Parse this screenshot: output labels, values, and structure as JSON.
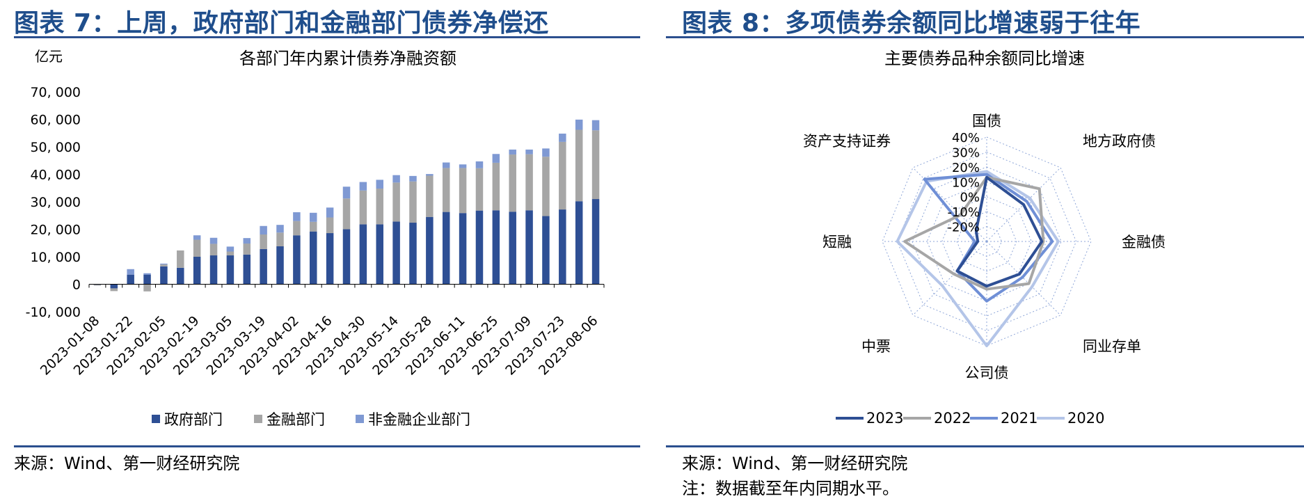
{
  "left": {
    "figure_title": "图表 7：上周，政府部门和金融部门债券净偿还",
    "source": "来源：Wind、第一财经研究院"
  },
  "right": {
    "figure_title": "图表 8：多项债券余额同比增速弱于往年",
    "source": "来源：Wind、第一财经研究院",
    "note": "注：数据截至年内同期水平。"
  },
  "colors": {
    "title": "#1f4e8c",
    "rule": "#2b4f8e",
    "gov": "#2e4f94",
    "fin": "#a6a6a6",
    "nonfin": "#7f99d3",
    "s2023": "#2e4f94",
    "s2022": "#a6a6a6",
    "s2021": "#6f8fd6",
    "s2020": "#b4c5e8"
  },
  "chart_data": [
    {
      "type": "bar",
      "stacked": true,
      "title": "各部门年内累计债券净融资额",
      "ylabel": "亿元",
      "ylim": [
        -10000,
        70000
      ],
      "yticks": [
        -10000,
        0,
        10000,
        20000,
        30000,
        40000,
        50000,
        60000,
        70000
      ],
      "ytick_labels": [
        "-10, 000",
        "0",
        "10, 000",
        "20, 000",
        "30, 000",
        "40, 000",
        "50, 000",
        "60, 000",
        "70, 000"
      ],
      "categories": [
        "2023-01-08",
        "2023-01-15",
        "2023-01-22",
        "2023-01-29",
        "2023-02-05",
        "2023-02-12",
        "2023-02-19",
        "2023-02-26",
        "2023-03-05",
        "2023-03-12",
        "2023-03-19",
        "2023-03-26",
        "2023-04-02",
        "2023-04-09",
        "2023-04-16",
        "2023-04-23",
        "2023-04-30",
        "2023-05-07",
        "2023-05-14",
        "2023-05-21",
        "2023-05-28",
        "2023-06-04",
        "2023-06-11",
        "2023-06-18",
        "2023-06-25",
        "2023-07-02",
        "2023-07-09",
        "2023-07-16",
        "2023-07-23",
        "2023-07-30",
        "2023-08-06"
      ],
      "xtick_labels": [
        "2023-01-08",
        "2023-01-22",
        "2023-02-05",
        "2023-02-19",
        "2023-03-05",
        "2023-03-19",
        "2023-04-02",
        "2023-04-16",
        "2023-04-30",
        "2023-05-14",
        "2023-05-28",
        "2023-06-11",
        "2023-06-25",
        "2023-07-09",
        "2023-07-23",
        "2023-08-06"
      ],
      "series": [
        {
          "name": "政府部门",
          "values": [
            -200,
            -1500,
            3500,
            3500,
            6500,
            6000,
            10000,
            10500,
            10500,
            10800,
            12800,
            13800,
            17800,
            19200,
            18600,
            20000,
            21800,
            21800,
            22800,
            22400,
            24500,
            26300,
            25900,
            26800,
            26900,
            26400,
            26900,
            24800,
            27200,
            30200,
            31000
          ]
        },
        {
          "name": "金融部门",
          "values": [
            -300,
            -1000,
            0,
            -2600,
            700,
            6300,
            6200,
            4200,
            1400,
            4000,
            5300,
            5000,
            5200,
            3500,
            5700,
            11200,
            12300,
            13000,
            14200,
            15000,
            15000,
            16000,
            16400,
            15400,
            17300,
            20800,
            20400,
            21600,
            24600,
            26000,
            25000
          ]
        },
        {
          "name": "非金融企业部门",
          "values": [
            0,
            0,
            2000,
            500,
            300,
            0,
            1600,
            2200,
            1800,
            2000,
            3100,
            2800,
            3200,
            3300,
            3600,
            4300,
            3100,
            3200,
            2700,
            2000,
            600,
            2000,
            1300,
            2500,
            3200,
            1800,
            1700,
            3000,
            3000,
            3700,
            3700
          ]
        }
      ],
      "legend": "bottom"
    },
    {
      "type": "radar",
      "title": "主要债券品种余额同比增速",
      "categories": [
        "国债",
        "地方政府债",
        "金融债",
        "同业存单",
        "公司债",
        "中票",
        "短融",
        "资产支持证券"
      ],
      "rlim": [
        -30,
        40
      ],
      "rticks": [
        -20,
        -10,
        0,
        10,
        20,
        30,
        40
      ],
      "rtick_labels": [
        "-20%",
        "-10%",
        "0%",
        "10%",
        "20%",
        "30%",
        "40%"
      ],
      "series": [
        {
          "name": "2023",
          "values": [
            13,
            5,
            7,
            1,
            0,
            -2,
            -24,
            -20
          ]
        },
        {
          "name": "2022",
          "values": [
            13,
            20,
            8,
            10,
            2,
            1,
            25,
            -5
          ]
        },
        {
          "name": "2021",
          "values": [
            15,
            8,
            14,
            4,
            10,
            -2,
            -22,
            29
          ]
        },
        {
          "name": "2020",
          "values": [
            17,
            11,
            18,
            13,
            40,
            12,
            30,
            27
          ]
        }
      ],
      "legend": "bottom"
    }
  ]
}
